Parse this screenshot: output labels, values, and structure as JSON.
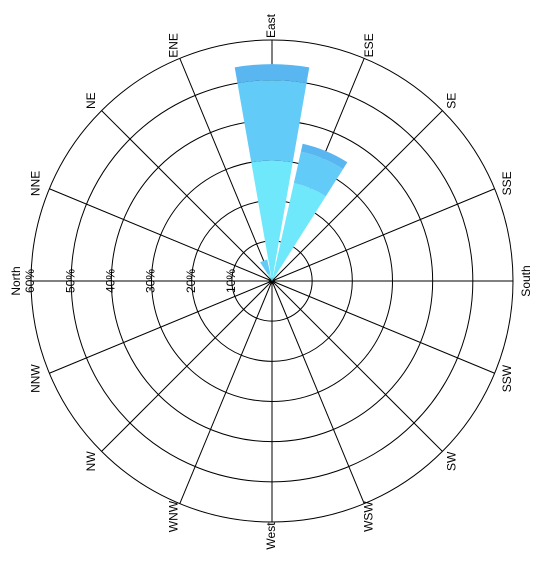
{
  "chart_data": {
    "type": "polar-bar",
    "title": "",
    "directions": [
      "North",
      "NNE",
      "NE",
      "ENE",
      "East",
      "ESE",
      "SE",
      "SSE",
      "South",
      "SSW",
      "SW",
      "WSW",
      "West",
      "WNW",
      "NW",
      "NNW"
    ],
    "radial_ticks": [
      "10%",
      "20%",
      "30%",
      "40%",
      "50%",
      "60%"
    ],
    "rlim": [
      0,
      60
    ],
    "grid": true,
    "bars": [
      {
        "direction": "ENE",
        "segments": [
          2,
          3.5
        ]
      },
      {
        "direction": "East",
        "segments": [
          30,
          20,
          4
        ]
      },
      {
        "direction": "ESE",
        "segments": [
          25,
          8,
          2
        ]
      }
    ],
    "segment_colors": [
      "#6fe8fb",
      "#63cbf7",
      "#5ab6f0"
    ]
  }
}
